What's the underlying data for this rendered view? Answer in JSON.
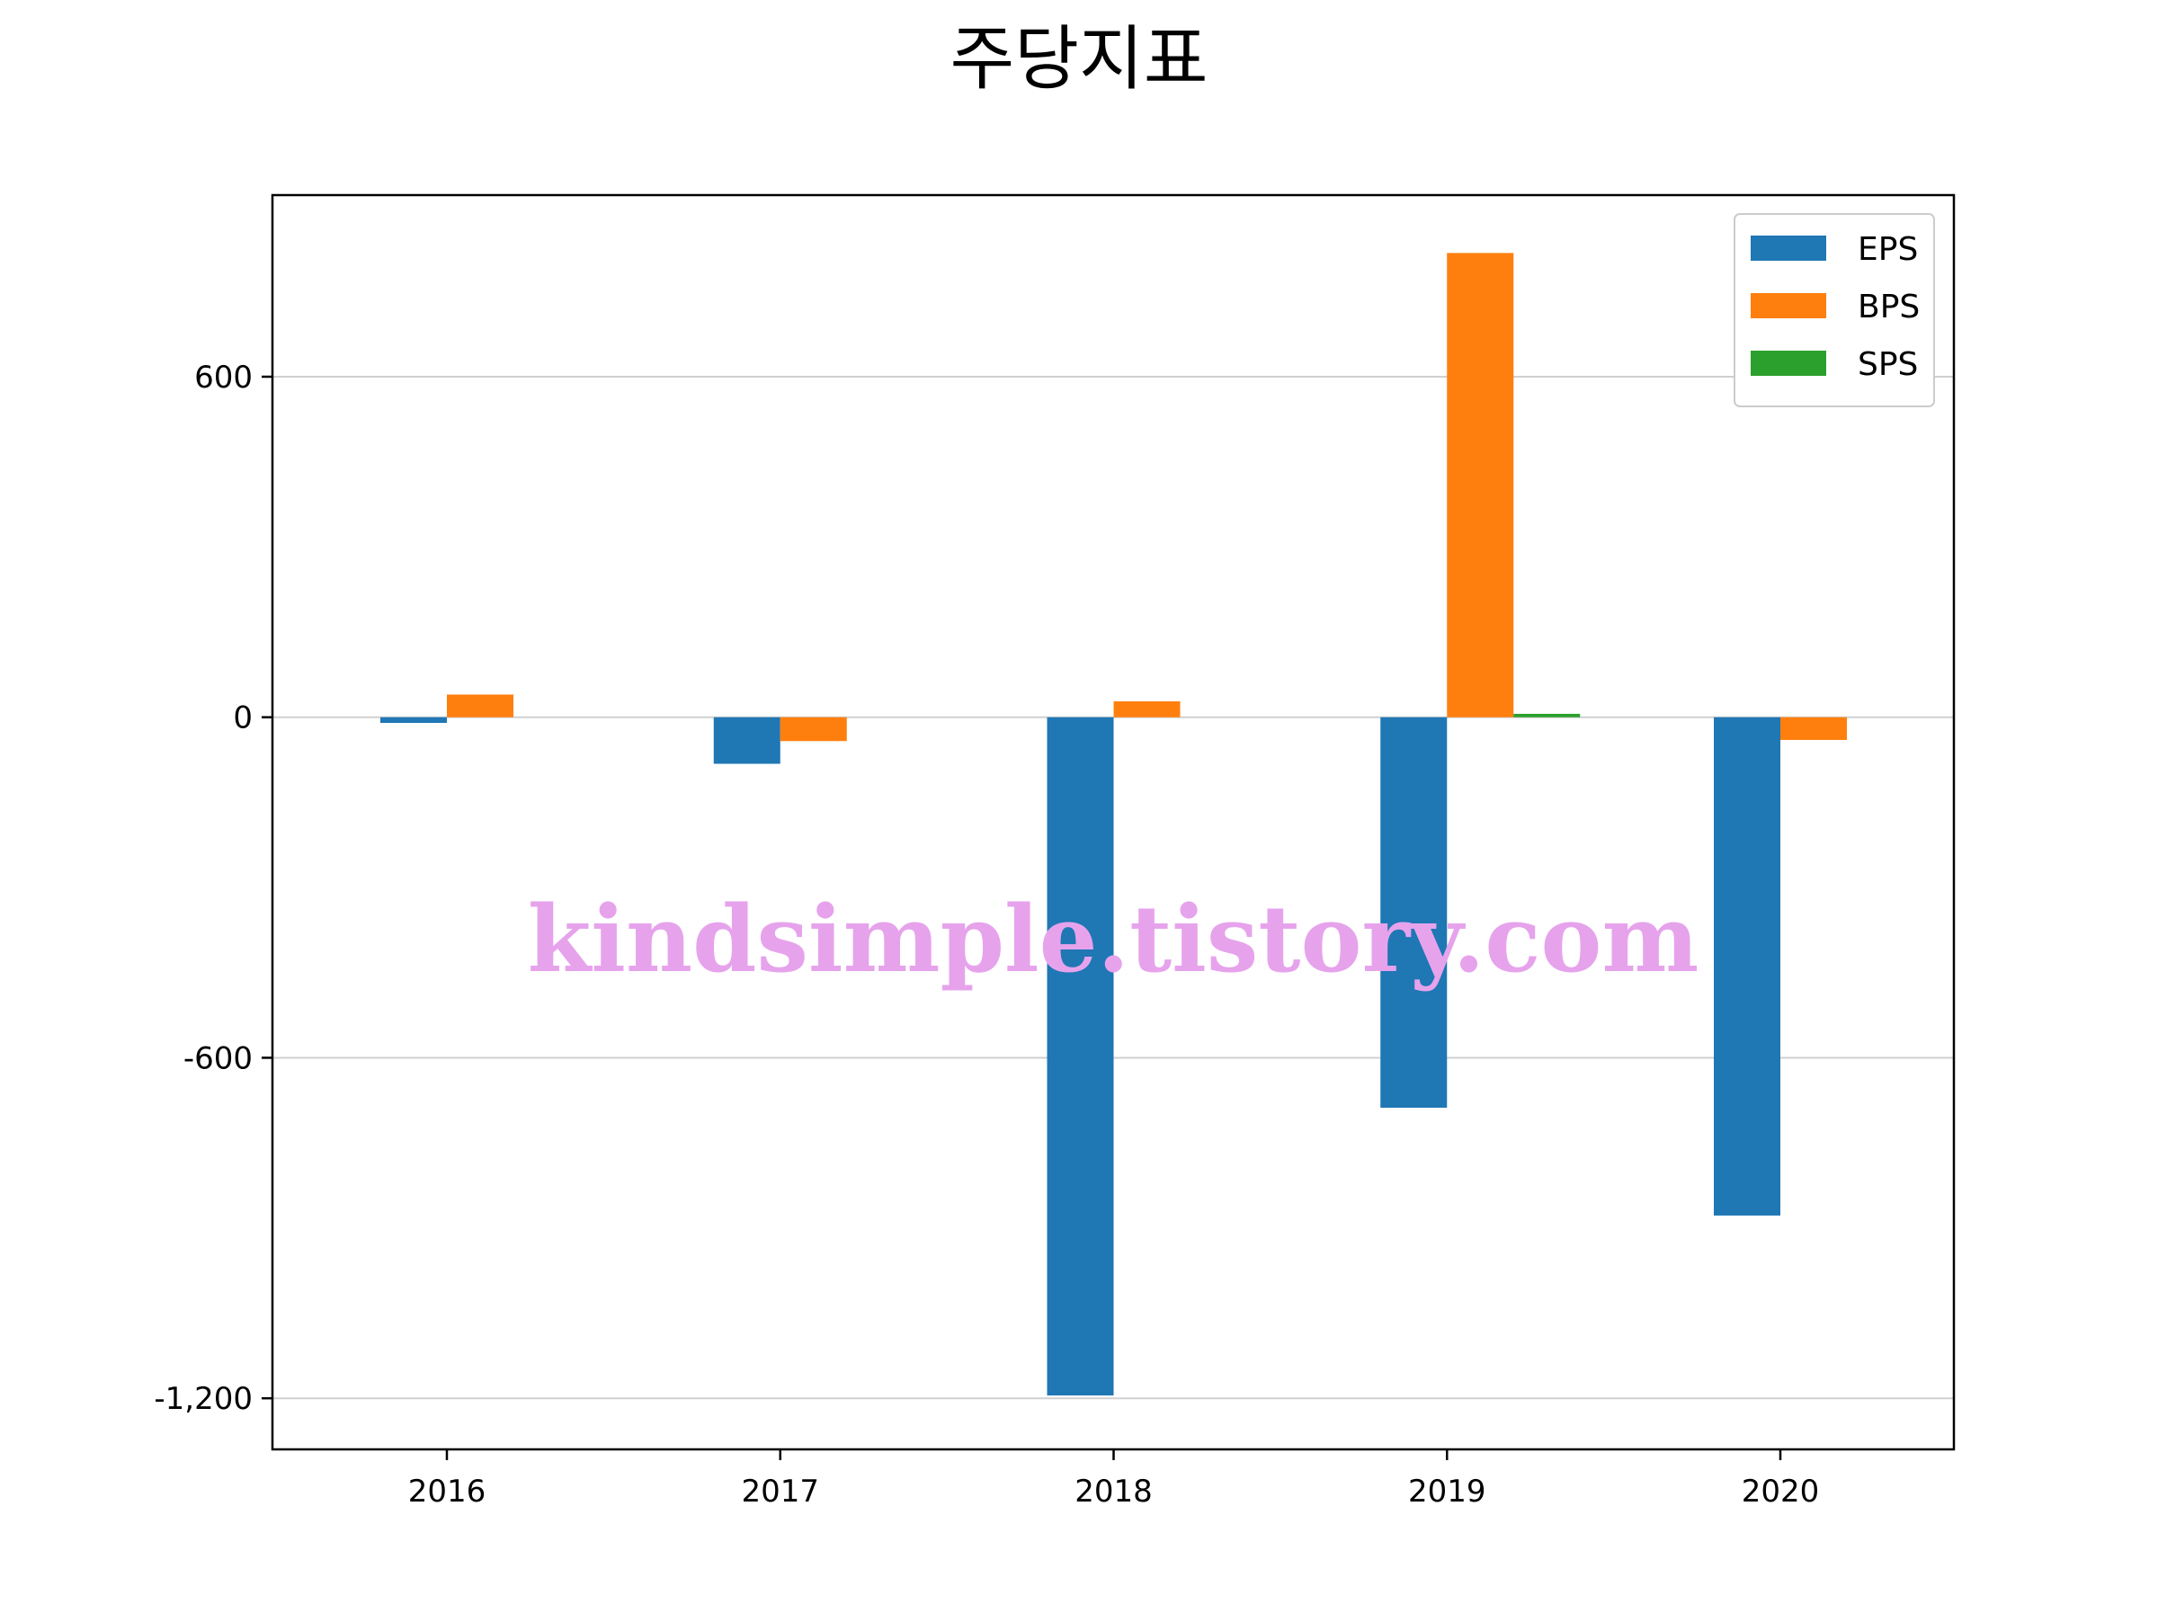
{
  "chart_data": {
    "type": "bar",
    "title": "주당지표",
    "categories": [
      "2016",
      "2017",
      "2018",
      "2019",
      "2020"
    ],
    "series": [
      {
        "name": "EPS",
        "color": "#1f77b4",
        "values": [
          -10,
          -82,
          -1195,
          -688,
          -878
        ]
      },
      {
        "name": "BPS",
        "color": "#ff7f0e",
        "values": [
          40,
          -42,
          28,
          818,
          -40
        ]
      },
      {
        "name": "SPS",
        "color": "#2ca02c",
        "values": [
          0,
          0,
          0,
          6,
          0
        ]
      }
    ],
    "ylim": [
      -1290,
      920
    ],
    "yticks": [
      600,
      0,
      -600,
      -1200
    ],
    "ytick_labels": [
      "600",
      "0",
      "-600",
      "-1,200"
    ],
    "grid": "horizontal",
    "legend": "top-right",
    "xlabel": "",
    "ylabel": ""
  },
  "watermark": "kindsimple.tistory.com"
}
